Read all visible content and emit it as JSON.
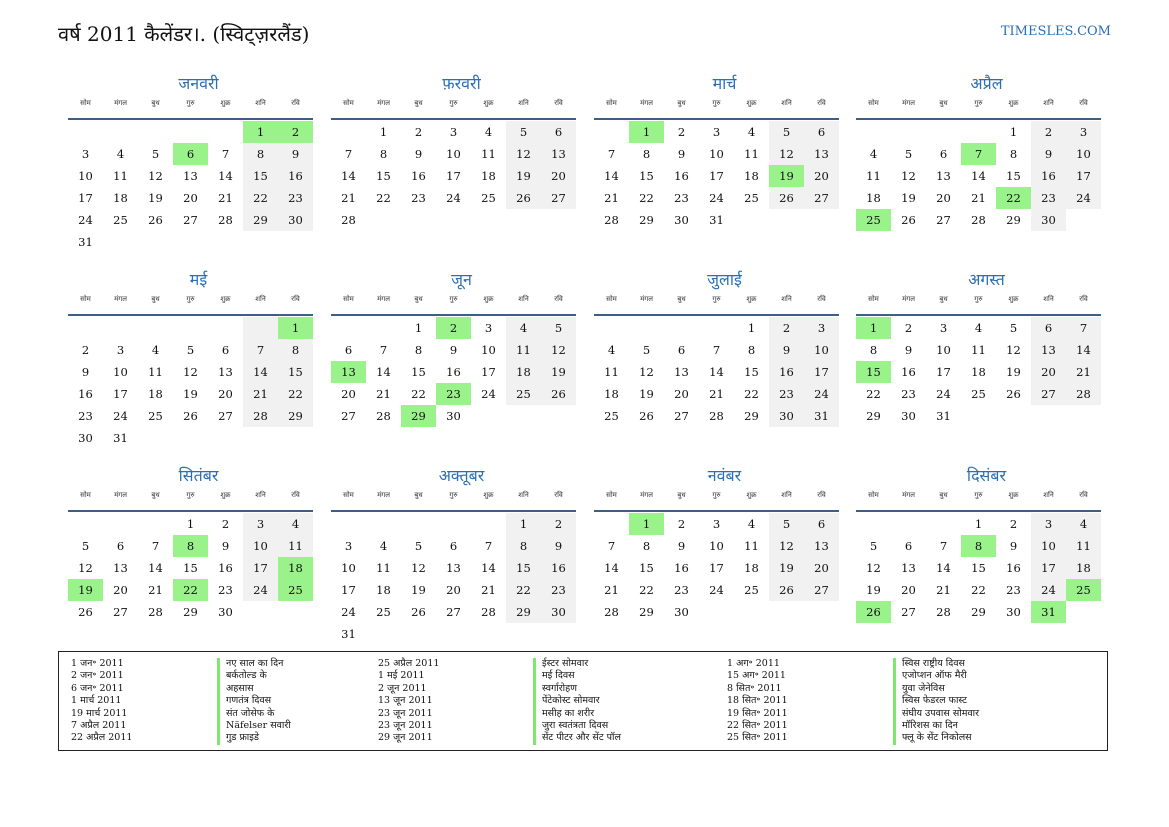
{
  "header": {
    "title": "वर्ष 2011 कैलेंडर।. (स्विट्ज़रलैंड)",
    "brand": "TIMESLES.COM"
  },
  "weekdays": [
    "सोम",
    "मंगल",
    "बुध",
    "गुरु",
    "शुक्र",
    "शनि",
    "रवि"
  ],
  "months": [
    {
      "name": "जनवरी",
      "start": 5,
      "days": 31,
      "holidays": [
        1,
        2,
        6
      ]
    },
    {
      "name": "फ़रवरी",
      "start": 1,
      "days": 28,
      "holidays": []
    },
    {
      "name": "मार्च",
      "start": 1,
      "days": 31,
      "holidays": [
        1,
        19
      ]
    },
    {
      "name": "अप्रैल",
      "start": 4,
      "days": 30,
      "holidays": [
        7,
        22,
        25
      ]
    },
    {
      "name": "मई",
      "start": 6,
      "days": 31,
      "holidays": [
        1
      ]
    },
    {
      "name": "जून",
      "start": 2,
      "days": 30,
      "holidays": [
        2,
        13,
        23,
        29
      ]
    },
    {
      "name": "जुलाई",
      "start": 4,
      "days": 31,
      "holidays": []
    },
    {
      "name": "अगस्त",
      "start": 0,
      "days": 31,
      "holidays": [
        1,
        15
      ]
    },
    {
      "name": "सितंबर",
      "start": 3,
      "days": 30,
      "holidays": [
        8,
        18,
        19,
        22,
        25
      ]
    },
    {
      "name": "अक्तूबर",
      "start": 5,
      "days": 31,
      "holidays": []
    },
    {
      "name": "नवंबर",
      "start": 1,
      "days": 30,
      "holidays": [
        1
      ]
    },
    {
      "name": "दिसंबर",
      "start": 3,
      "days": 31,
      "holidays": [
        8,
        25,
        26,
        31
      ]
    }
  ],
  "legend": [
    {
      "date": "1 जन॰ 2011",
      "name": "नए साल का दिन"
    },
    {
      "date": "2 जन॰ 2011",
      "name": "बर्कतोल्ड के"
    },
    {
      "date": "6 जन॰ 2011",
      "name": "अहसास"
    },
    {
      "date": "1 मार्च 2011",
      "name": "गणतंत्र दिवस"
    },
    {
      "date": "19 मार्च 2011",
      "name": "संत जोसेफ के"
    },
    {
      "date": "7 अप्रैल 2011",
      "name": "Näfelser सवारी"
    },
    {
      "date": "22 अप्रैल 2011",
      "name": "गुड फ्राइडे"
    },
    {
      "date": "25 अप्रैल 2011",
      "name": "ईस्टर सोमवार"
    },
    {
      "date": "1 मई 2011",
      "name": "मई दिवस"
    },
    {
      "date": "2 जून 2011",
      "name": "स्वर्गारोहण"
    },
    {
      "date": "13 जून 2011",
      "name": "पेंटेकोस्ट सोमवार"
    },
    {
      "date": "23 जून 2011",
      "name": "मसीह का शरीर"
    },
    {
      "date": "23 जून 2011",
      "name": "जुरा स्वतंत्रता दिवस"
    },
    {
      "date": "29 जून 2011",
      "name": "सेंट पीटर और सेंट पॉल"
    },
    {
      "date": "1 अग॰ 2011",
      "name": "स्विस राष्ट्रीय दिवस"
    },
    {
      "date": "15 अग॰ 2011",
      "name": "एजोप्शन ऑफ मैरी"
    },
    {
      "date": "8 सित॰ 2011",
      "name": "युवा जेनेविस"
    },
    {
      "date": "18 सित॰ 2011",
      "name": "स्विस फेडरल फास्ट"
    },
    {
      "date": "19 सित॰ 2011",
      "name": "संघीय उपवास सोमवार"
    },
    {
      "date": "22 सित॰ 2011",
      "name": "मॉरिशस का दिन"
    },
    {
      "date": "25 सित॰ 2011",
      "name": "फ्लू के सेंट निकोलस"
    }
  ]
}
